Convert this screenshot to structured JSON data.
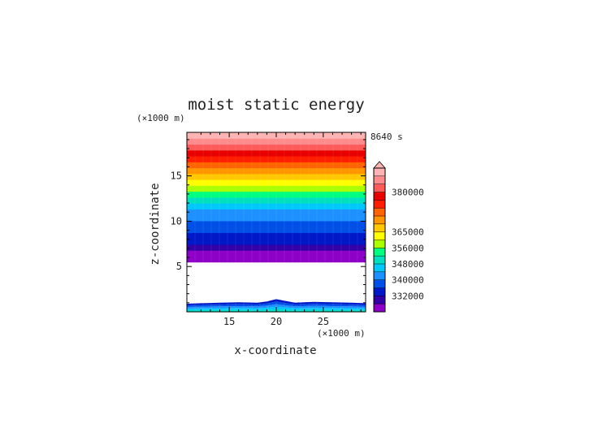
{
  "chart_data": {
    "type": "heatmap",
    "title": "moist static energy",
    "xlabel": "x-coordinate",
    "ylabel": "z-coordinate",
    "x_unit": "(×1000 m)",
    "y_unit": "(×1000 m)",
    "time_label": "8640 s",
    "xlim": [
      10.5,
      29.5
    ],
    "ylim": [
      0,
      19.8
    ],
    "xticks": [
      15,
      20,
      25
    ],
    "yticks": [
      5,
      10,
      15
    ],
    "grid": false,
    "colorbar": {
      "position": "right",
      "labels": [
        "380000",
        "365000",
        "356000",
        "348000",
        "340000",
        "332000"
      ],
      "colors": [
        "#8e00c8",
        "#3300a8",
        "#0018c8",
        "#0050e8",
        "#1e90ff",
        "#00c8ff",
        "#00e0c0",
        "#00ff80",
        "#aaff00",
        "#ffff00",
        "#ffc800",
        "#ff9600",
        "#ff6400",
        "#ff1e00",
        "#e80000",
        "#ff5a5a",
        "#ff8c8c",
        "#ffb4b4"
      ]
    },
    "upper_layer": {
      "z_range": [
        5.5,
        19.8
      ],
      "band_order_bottom_to_top": [
        "#8e00c8",
        "#8e00c8",
        "#3300a8",
        "#0018c8",
        "#0018c8",
        "#0050e8",
        "#0050e8",
        "#1e90ff",
        "#1e90ff",
        "#00c8ff",
        "#00e0c0",
        "#00ff80",
        "#aaff00",
        "#ffff00",
        "#ffc800",
        "#ff9600",
        "#ff6400",
        "#ff1e00",
        "#e80000",
        "#ff5a5a",
        "#ff8c8c",
        "#ffb4b4"
      ]
    },
    "surface_layer": {
      "x": [
        10.5,
        12,
        14,
        16,
        18,
        19,
        20,
        21,
        22,
        24,
        26,
        28,
        29.5
      ],
      "top_z": [
        0.9,
        0.95,
        1.0,
        1.05,
        1.0,
        1.15,
        1.4,
        1.2,
        1.0,
        1.1,
        1.05,
        1.0,
        0.95
      ],
      "colors_bottom_to_top": [
        "#00e0c0",
        "#00c8ff",
        "#1e90ff",
        "#0050e8",
        "#0018c8"
      ]
    }
  }
}
